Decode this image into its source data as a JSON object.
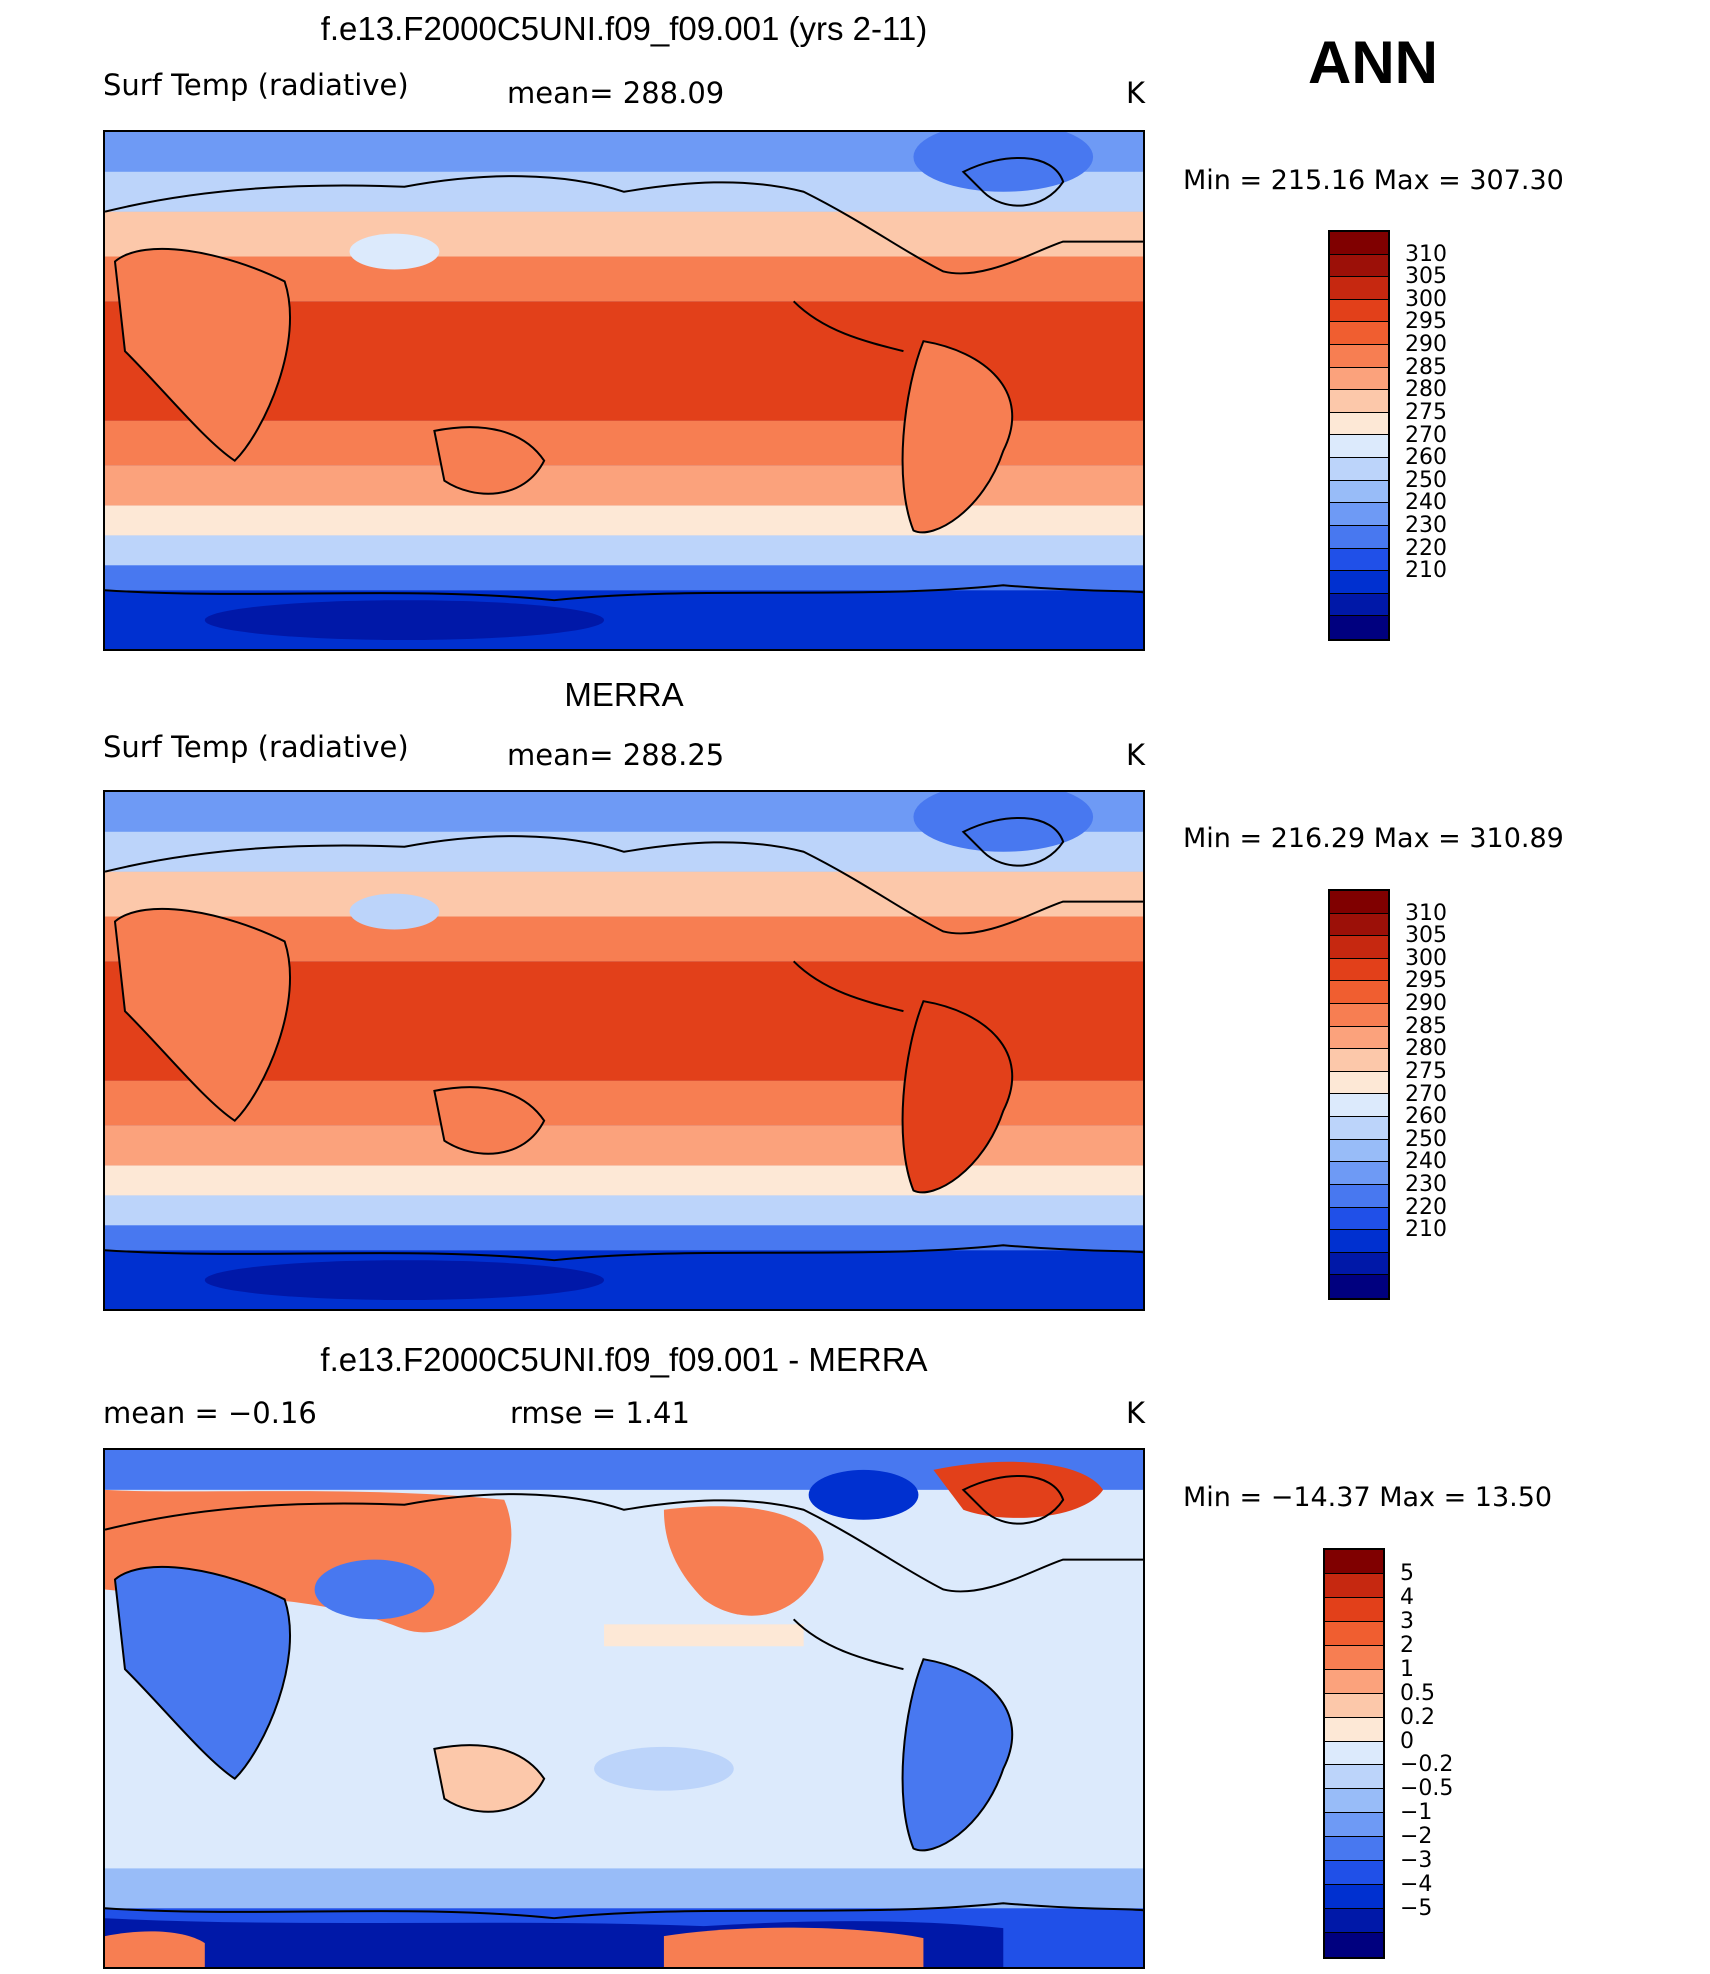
{
  "season": "ANN",
  "colors": {
    "abs": [
      "#00007f",
      "#0018a8",
      "#0030d0",
      "#2050e8",
      "#4878f0",
      "#6e9af5",
      "#98bcf8",
      "#bcd4fa",
      "#dceafc",
      "#fde8d6",
      "#fcc8aa",
      "#fba27c",
      "#f77e52",
      "#f05e30",
      "#e2401a",
      "#c62810",
      "#9c1008",
      "#800000"
    ],
    "diff": [
      "#00007f",
      "#0018a8",
      "#0030d0",
      "#2050e8",
      "#4878f0",
      "#6e9af5",
      "#98bcf8",
      "#bcd4fa",
      "#dceafc",
      "#fde8d6",
      "#fcc8aa",
      "#fba27c",
      "#f77e52",
      "#f05e30",
      "#e2401a",
      "#c62810",
      "#800000"
    ]
  },
  "panels": [
    {
      "title": "f.e13.F2000C5UNI.f09_f09.001 (yrs 2-11)",
      "left_label": "Surf Temp (radiative)",
      "center_label": "mean=  288.09",
      "units": "K",
      "minmax": "Min  =  215.16  Max  =  307.30",
      "colorbar": [
        "310",
        "305",
        "300",
        "295",
        "290",
        "285",
        "280",
        "275",
        "270",
        "260",
        "250",
        "240",
        "230",
        "220",
        "210"
      ]
    },
    {
      "title": "MERRA",
      "left_label": "Surf Temp (radiative)",
      "center_label": "mean=  288.25",
      "units": "K",
      "minmax": "Min  =  216.29  Max  =  310.89",
      "colorbar": [
        "310",
        "305",
        "300",
        "295",
        "290",
        "285",
        "280",
        "275",
        "270",
        "260",
        "250",
        "240",
        "230",
        "220",
        "210"
      ]
    },
    {
      "title": "f.e13.F2000C5UNI.f09_f09.001 - MERRA",
      "left_label": "mean =     −0.16",
      "center_label": "rmse =      1.41",
      "units": "K",
      "minmax": "Min  =  −14.37  Max  =     13.50",
      "colorbar": [
        "5",
        "4",
        "3",
        "2",
        "1",
        "0.5",
        "0.2",
        "0",
        "−0.2",
        "−0.5",
        "−1",
        "−2",
        "−3",
        "−4",
        "−5"
      ]
    }
  ]
}
